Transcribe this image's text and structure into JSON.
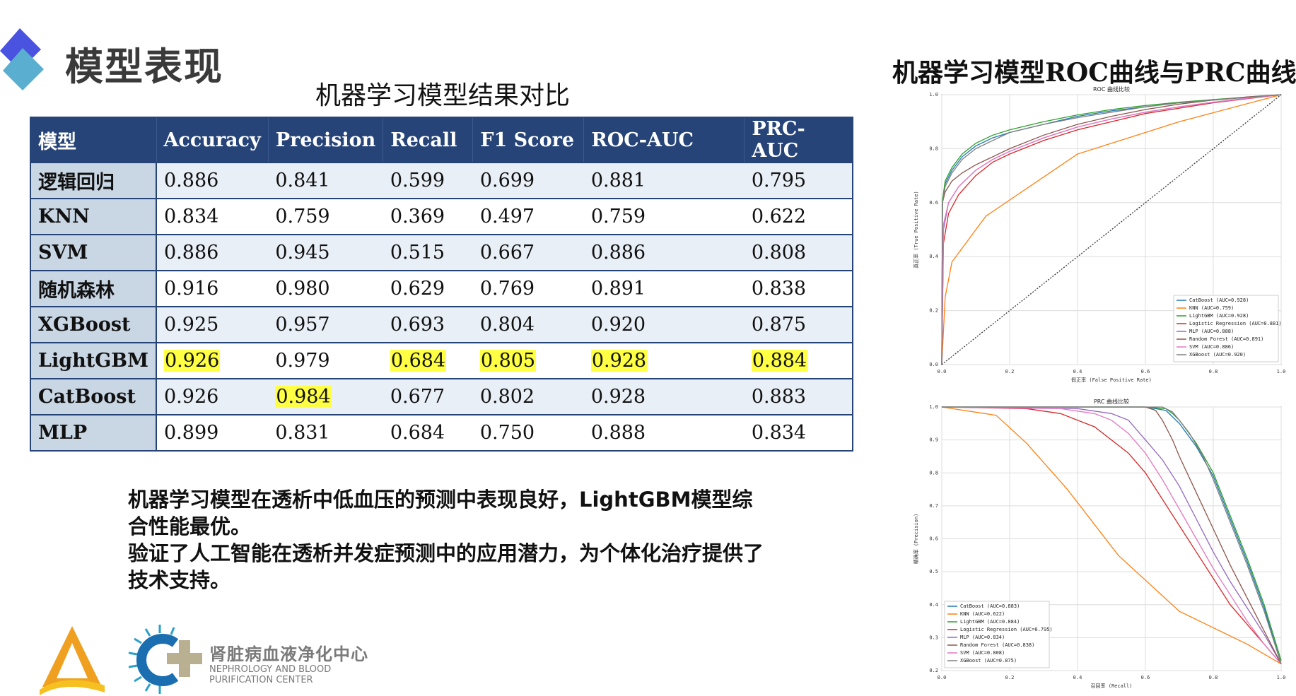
{
  "header": {
    "title": "模型表现",
    "table_title": "机器学习模型结果对比",
    "right_title": "机器学习模型ROC曲线与PRC曲线"
  },
  "table": {
    "columns": [
      "模型",
      "Accuracy",
      "Precision",
      "Recall",
      "F1 Score",
      "ROC-AUC",
      "PRC-AUC"
    ],
    "rows": [
      {
        "model": "逻辑回归",
        "values": [
          "0.886",
          "0.841",
          "0.599",
          "0.699",
          "0.881",
          "0.795"
        ],
        "highlight": [
          false,
          false,
          false,
          false,
          false,
          false
        ]
      },
      {
        "model": "KNN",
        "values": [
          "0.834",
          "0.759",
          "0.369",
          "0.497",
          "0.759",
          "0.622"
        ],
        "highlight": [
          false,
          false,
          false,
          false,
          false,
          false
        ]
      },
      {
        "model": "SVM",
        "values": [
          "0.886",
          "0.945",
          "0.515",
          "0.667",
          "0.886",
          "0.808"
        ],
        "highlight": [
          false,
          false,
          false,
          false,
          false,
          false
        ]
      },
      {
        "model": "随机森林",
        "values": [
          "0.916",
          "0.980",
          "0.629",
          "0.769",
          "0.891",
          "0.838"
        ],
        "highlight": [
          false,
          false,
          false,
          false,
          false,
          false
        ]
      },
      {
        "model": "XGBoost",
        "values": [
          "0.925",
          "0.957",
          "0.693",
          "0.804",
          "0.920",
          "0.875"
        ],
        "highlight": [
          false,
          false,
          false,
          false,
          false,
          false
        ]
      },
      {
        "model": "LightGBM",
        "values": [
          "0.926",
          "0.979",
          "0.684",
          "0.805",
          "0.928",
          "0.884"
        ],
        "highlight": [
          true,
          false,
          true,
          true,
          true,
          true
        ]
      },
      {
        "model": "CatBoost",
        "values": [
          "0.926",
          "0.984",
          "0.677",
          "0.802",
          "0.928",
          "0.883"
        ],
        "highlight": [
          false,
          true,
          false,
          false,
          false,
          false
        ]
      },
      {
        "model": "MLP",
        "values": [
          "0.899",
          "0.831",
          "0.684",
          "0.750",
          "0.888",
          "0.834"
        ],
        "highlight": [
          false,
          false,
          false,
          false,
          false,
          false
        ]
      }
    ],
    "highlight_color": "#ffff44",
    "header_color": "#264478"
  },
  "summary": {
    "line1": "机器学习模型在透析中低血压的预测中表现良好，LightGBM模型综合性能最优。",
    "line2": "验证了人工智能在透析并发症预测中的应用潜力，为个体化治疗提供了技术支持。"
  },
  "org": {
    "name_cn": "肾脏病血液净化中心",
    "name_en_1": "NEPHROLOGY AND BLOOD",
    "name_en_2": "PURIFICATION CENTER"
  },
  "chart_data": [
    {
      "type": "line",
      "title": "ROC 曲线比较",
      "xlabel": "假正率 (False Positive Rate)",
      "ylabel": "真正率 (True Positive Rate)",
      "xlim": [
        0,
        1
      ],
      "ylim": [
        0,
        1
      ],
      "xticks": [
        "0.0",
        "0.2",
        "0.4",
        "0.6",
        "0.8",
        "1.0"
      ],
      "yticks": [
        "0.0",
        "0.2",
        "0.4",
        "0.6",
        "0.8",
        "1.0"
      ],
      "grid": true,
      "legend_position": "bottom-right",
      "series": [
        {
          "name": "CatBoost (AUC=0.928)",
          "color": "#1f77b4",
          "x": [
            0,
            0.002,
            0.01,
            0.03,
            0.06,
            0.1,
            0.15,
            0.2,
            0.3,
            0.4,
            0.5,
            0.6,
            0.7,
            0.8,
            0.9,
            1
          ],
          "y": [
            0,
            0.6,
            0.67,
            0.72,
            0.77,
            0.81,
            0.84,
            0.86,
            0.89,
            0.92,
            0.94,
            0.955,
            0.97,
            0.98,
            0.99,
            1
          ]
        },
        {
          "name": "KNN (AUC=0.759)",
          "color": "#ff7f0e",
          "x": [
            0,
            0.01,
            0.03,
            0.13,
            0.4,
            0.7,
            1
          ],
          "y": [
            0,
            0.25,
            0.38,
            0.55,
            0.78,
            0.9,
            1
          ]
        },
        {
          "name": "LightGBM (AUC=0.928)",
          "color": "#2ca02c",
          "x": [
            0,
            0.002,
            0.01,
            0.03,
            0.06,
            0.1,
            0.15,
            0.2,
            0.3,
            0.4,
            0.5,
            0.6,
            0.7,
            0.8,
            0.9,
            1
          ],
          "y": [
            0,
            0.61,
            0.68,
            0.73,
            0.78,
            0.82,
            0.85,
            0.87,
            0.9,
            0.925,
            0.945,
            0.96,
            0.972,
            0.982,
            0.991,
            1
          ]
        },
        {
          "name": "Logistic Regression (AUC=0.881)",
          "color": "#d62728",
          "x": [
            0,
            0.005,
            0.02,
            0.05,
            0.1,
            0.15,
            0.2,
            0.3,
            0.4,
            0.5,
            0.6,
            0.7,
            0.8,
            0.9,
            1
          ],
          "y": [
            0,
            0.45,
            0.56,
            0.63,
            0.7,
            0.75,
            0.78,
            0.83,
            0.87,
            0.9,
            0.93,
            0.95,
            0.97,
            0.985,
            1
          ]
        },
        {
          "name": "MLP (AUC=0.888)",
          "color": "#9467bd",
          "x": [
            0,
            0.005,
            0.02,
            0.05,
            0.1,
            0.15,
            0.2,
            0.3,
            0.4,
            0.5,
            0.6,
            0.7,
            0.8,
            0.9,
            1
          ],
          "y": [
            0,
            0.5,
            0.6,
            0.66,
            0.72,
            0.76,
            0.79,
            0.84,
            0.88,
            0.91,
            0.935,
            0.955,
            0.972,
            0.987,
            1
          ]
        },
        {
          "name": "Random Forest (AUC=0.891)",
          "color": "#8c564b",
          "x": [
            0,
            0.002,
            0.01,
            0.03,
            0.06,
            0.1,
            0.15,
            0.2,
            0.3,
            0.4,
            0.5,
            0.6,
            0.7,
            0.8,
            0.9,
            1
          ],
          "y": [
            0,
            0.6,
            0.64,
            0.68,
            0.71,
            0.74,
            0.77,
            0.8,
            0.85,
            0.89,
            0.92,
            0.945,
            0.965,
            0.98,
            0.992,
            1
          ]
        },
        {
          "name": "SVM (AUC=0.886)",
          "color": "#e377c2",
          "x": [
            0,
            0.005,
            0.02,
            0.05,
            0.1,
            0.15,
            0.2,
            0.3,
            0.4,
            0.5,
            0.6,
            0.7,
            0.8,
            0.9,
            1
          ],
          "y": [
            0,
            0.52,
            0.6,
            0.66,
            0.72,
            0.76,
            0.79,
            0.84,
            0.88,
            0.91,
            0.935,
            0.955,
            0.972,
            0.986,
            1
          ]
        },
        {
          "name": "XGBoost (AUC=0.920)",
          "color": "#7f7f7f",
          "x": [
            0,
            0.002,
            0.01,
            0.03,
            0.06,
            0.1,
            0.15,
            0.2,
            0.3,
            0.4,
            0.5,
            0.6,
            0.7,
            0.8,
            0.9,
            1
          ],
          "y": [
            0,
            0.6,
            0.66,
            0.71,
            0.76,
            0.8,
            0.83,
            0.86,
            0.89,
            0.915,
            0.935,
            0.955,
            0.97,
            0.98,
            0.99,
            1
          ]
        },
        {
          "name": "",
          "color": "#333333",
          "dashed": true,
          "x": [
            0,
            1
          ],
          "y": [
            0,
            1
          ]
        }
      ]
    },
    {
      "type": "line",
      "title": "PRC 曲线比较",
      "xlabel": "召回率 (Recall)",
      "ylabel": "精确率 (Precision)",
      "xlim": [
        0,
        1
      ],
      "ylim": [
        0.2,
        1.0
      ],
      "xticks": [
        "0.0",
        "0.2",
        "0.4",
        "0.6",
        "0.8",
        "1.0"
      ],
      "yticks": [
        "0.2",
        "0.3",
        "0.4",
        "0.5",
        "0.6",
        "0.7",
        "0.8",
        "0.9",
        "1.0"
      ],
      "grid": true,
      "legend_position": "bottom-left",
      "series": [
        {
          "name": "CatBoost (AUC=0.883)",
          "color": "#1f77b4",
          "x": [
            0,
            0.6,
            0.66,
            0.68,
            0.7,
            0.75,
            0.8,
            0.85,
            0.9,
            0.95,
            1
          ],
          "y": [
            1,
            1,
            0.99,
            0.97,
            0.95,
            0.88,
            0.79,
            0.66,
            0.53,
            0.39,
            0.22
          ]
        },
        {
          "name": "KNN (AUC=0.622)",
          "color": "#ff7f0e",
          "x": [
            0,
            0.16,
            0.25,
            0.37,
            0.52,
            0.7,
            0.8,
            0.9,
            1
          ],
          "y": [
            1,
            0.975,
            0.89,
            0.75,
            0.55,
            0.38,
            0.33,
            0.28,
            0.22
          ]
        },
        {
          "name": "LightGBM (AUC=0.884)",
          "color": "#2ca02c",
          "x": [
            0,
            0.6,
            0.66,
            0.68,
            0.7,
            0.75,
            0.8,
            0.85,
            0.9,
            0.95,
            1
          ],
          "y": [
            1,
            1,
            0.995,
            0.98,
            0.96,
            0.89,
            0.8,
            0.67,
            0.54,
            0.4,
            0.23
          ]
        },
        {
          "name": "Logistic Regression (AUC=0.795)",
          "color": "#d62728",
          "x": [
            0,
            0.25,
            0.35,
            0.45,
            0.55,
            0.6,
            0.65,
            0.7,
            0.75,
            0.8,
            0.85,
            0.9,
            0.95,
            1
          ],
          "y": [
            1,
            0.995,
            0.98,
            0.94,
            0.86,
            0.8,
            0.72,
            0.64,
            0.56,
            0.48,
            0.4,
            0.34,
            0.28,
            0.22
          ]
        },
        {
          "name": "MLP (AUC=0.834)",
          "color": "#9467bd",
          "x": [
            0,
            0.4,
            0.5,
            0.55,
            0.6,
            0.65,
            0.7,
            0.75,
            0.8,
            0.85,
            0.9,
            0.95,
            1
          ],
          "y": [
            1,
            0.995,
            0.98,
            0.96,
            0.9,
            0.84,
            0.76,
            0.66,
            0.56,
            0.47,
            0.39,
            0.31,
            0.22
          ]
        },
        {
          "name": "Random Forest (AUC=0.838)",
          "color": "#8c564b",
          "x": [
            0,
            0.6,
            0.63,
            0.65,
            0.68,
            0.7,
            0.75,
            0.8,
            0.85,
            0.9,
            0.95,
            1
          ],
          "y": [
            1,
            1,
            0.99,
            0.96,
            0.9,
            0.85,
            0.74,
            0.63,
            0.52,
            0.42,
            0.32,
            0.22
          ]
        },
        {
          "name": "SVM (AUC=0.808)",
          "color": "#e377c2",
          "x": [
            0,
            0.35,
            0.45,
            0.5,
            0.55,
            0.6,
            0.65,
            0.7,
            0.75,
            0.8,
            0.85,
            0.9,
            0.95,
            1
          ],
          "y": [
            1,
            0.995,
            0.98,
            0.96,
            0.92,
            0.86,
            0.78,
            0.69,
            0.6,
            0.51,
            0.43,
            0.35,
            0.28,
            0.22
          ]
        },
        {
          "name": "XGBoost (AUC=0.875)",
          "color": "#7f7f7f",
          "x": [
            0,
            0.65,
            0.68,
            0.7,
            0.73,
            0.77,
            0.8,
            0.85,
            0.9,
            0.95,
            1
          ],
          "y": [
            1,
            1,
            0.985,
            0.96,
            0.92,
            0.85,
            0.78,
            0.65,
            0.52,
            0.38,
            0.22
          ]
        }
      ]
    }
  ]
}
